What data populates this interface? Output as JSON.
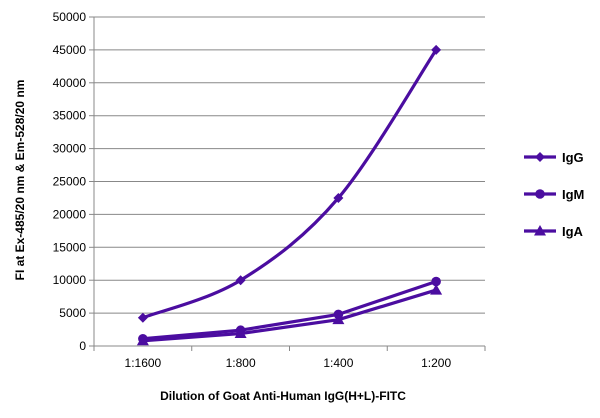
{
  "chart_data": {
    "type": "line",
    "categories": [
      "1:1600",
      "1:800",
      "1:400",
      "1:200"
    ],
    "series": [
      {
        "name": "IgG",
        "marker": "diamond",
        "values": [
          4300,
          10000,
          22500,
          45000
        ]
      },
      {
        "name": "IgM",
        "marker": "circle",
        "values": [
          1100,
          2400,
          4800,
          9800
        ]
      },
      {
        "name": "IgA",
        "marker": "triangle",
        "values": [
          800,
          1900,
          4000,
          8500
        ]
      }
    ],
    "title": "",
    "xlabel": "Dilution of Goat Anti-Human IgG(H+L)-FITC",
    "ylabel": "FI at Ex-485/20 nm & Em-528/20 nm",
    "ylim": [
      0,
      50000
    ],
    "yticks": [
      0,
      5000,
      10000,
      15000,
      20000,
      25000,
      30000,
      35000,
      40000,
      45000,
      50000
    ],
    "grid": true,
    "legend_position": "right",
    "color": "#4B0DA0",
    "grid_color": "#888888"
  }
}
